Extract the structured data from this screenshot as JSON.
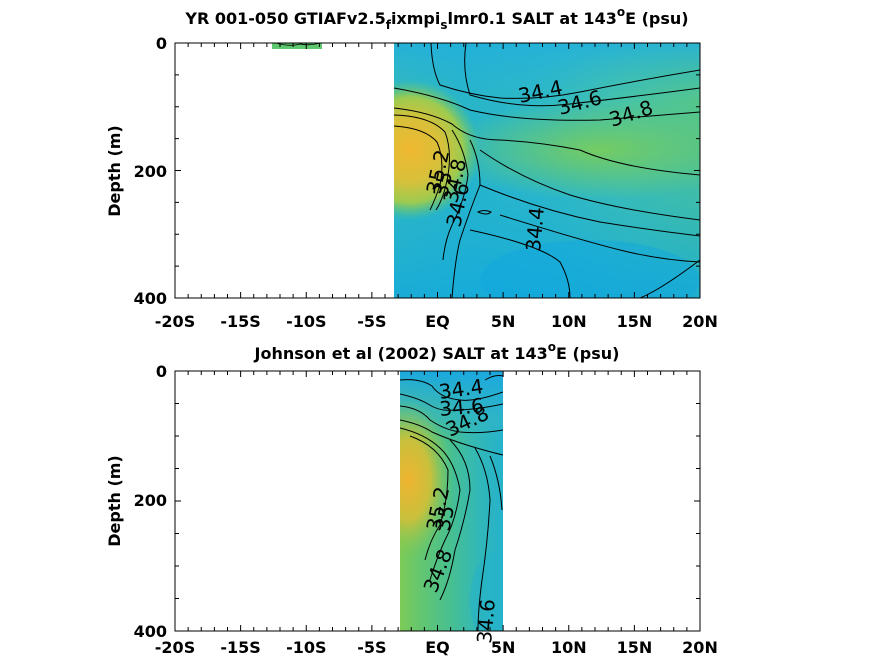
{
  "chart_data": [
    {
      "type": "heatmap",
      "title_main": "YR 001-050 GTIAFv2.5",
      "title_sub1": "f",
      "title_mid": "ixmpi",
      "title_sub2": "s",
      "title_tail": "lmr0.1 SALT at 143",
      "title_sup": "o",
      "title_end": "E (psu)",
      "ylabel": "Depth (m)",
      "xlim": [
        "20S",
        "20N"
      ],
      "ylim": [
        0,
        400
      ],
      "x_ticks": [
        "-20S",
        "-15S",
        "-10S",
        "-5S",
        "EQ",
        "5N",
        "10N",
        "15N",
        "20N"
      ],
      "y_ticks": [
        "0",
        "200",
        "400"
      ],
      "data_extent_lat": [
        -3,
        20
      ],
      "contour_labels": [
        "34.4",
        "34.6",
        "34.8",
        "35.2",
        "35",
        "34.8",
        "34.6",
        "34.4"
      ]
    },
    {
      "type": "heatmap",
      "title_main": "Johnson et al (2002) SALT at 143",
      "title_sup": "o",
      "title_end": "E (psu)",
      "ylabel": "Depth (m)",
      "xlim": [
        "20S",
        "20N"
      ],
      "ylim": [
        0,
        400
      ],
      "x_ticks": [
        "-20S",
        "-15S",
        "-10S",
        "-5S",
        "EQ",
        "5N",
        "10N",
        "15N",
        "20N"
      ],
      "y_ticks": [
        "0",
        "200",
        "400"
      ],
      "data_extent_lat": [
        -2.6,
        5
      ],
      "contour_labels": [
        "34.4",
        "34.6",
        "34.8",
        "35.2",
        "35",
        "34.8",
        "34.6"
      ]
    }
  ]
}
